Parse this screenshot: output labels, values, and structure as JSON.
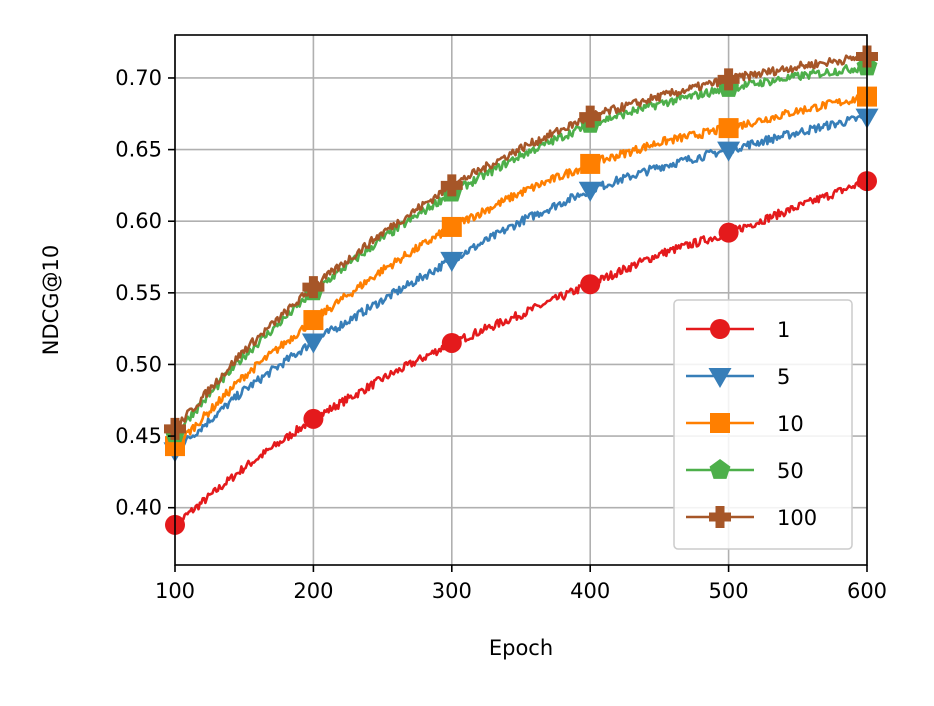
{
  "chart_data": {
    "type": "line",
    "title": "",
    "xlabel": "Epoch",
    "ylabel": "NDCG@10",
    "xlim": [
      100,
      600
    ],
    "ylim": [
      0.36,
      0.73
    ],
    "xticks": [
      100,
      200,
      300,
      400,
      500,
      600
    ],
    "xtick_labels": [
      "100",
      "200",
      "300",
      "400",
      "500",
      "600"
    ],
    "yticks": [
      0.4,
      0.45,
      0.5,
      0.55,
      0.6,
      0.65,
      0.7
    ],
    "ytick_labels": [
      "0.40",
      "0.45",
      "0.50",
      "0.55",
      "0.60",
      "0.65",
      "0.70"
    ],
    "grid": true,
    "legend_position": "lower-right",
    "marker_x": [
      100,
      200,
      300,
      400,
      500,
      600
    ],
    "series": [
      {
        "name": "1",
        "color": "#e41a1c",
        "marker": "circle",
        "x": [
          100,
          150,
          200,
          250,
          300,
          350,
          400,
          450,
          500,
          550,
          600
        ],
        "y": [
          0.388,
          0.428,
          0.462,
          0.49,
          0.515,
          0.535,
          0.556,
          0.577,
          0.592,
          0.61,
          0.628
        ]
      },
      {
        "name": "5",
        "color": "#377eb8",
        "marker": "triangle-down",
        "x": [
          100,
          150,
          200,
          250,
          300,
          350,
          400,
          450,
          500,
          550,
          600
        ],
        "y": [
          0.44,
          0.482,
          0.516,
          0.545,
          0.573,
          0.6,
          0.622,
          0.638,
          0.65,
          0.662,
          0.673
        ]
      },
      {
        "name": "10",
        "color": "#ff7f00",
        "marker": "square",
        "x": [
          100,
          150,
          200,
          250,
          300,
          350,
          400,
          450,
          500,
          550,
          600
        ],
        "y": [
          0.443,
          0.492,
          0.531,
          0.566,
          0.596,
          0.62,
          0.64,
          0.655,
          0.665,
          0.677,
          0.687
        ]
      },
      {
        "name": "50",
        "color": "#4daf4a",
        "marker": "pentagon",
        "x": [
          100,
          150,
          200,
          250,
          300,
          350,
          400,
          450,
          500,
          550,
          600
        ],
        "y": [
          0.452,
          0.506,
          0.551,
          0.588,
          0.62,
          0.646,
          0.668,
          0.682,
          0.693,
          0.701,
          0.708
        ]
      },
      {
        "name": "100",
        "color": "#a65628",
        "marker": "plus",
        "x": [
          100,
          150,
          200,
          250,
          300,
          350,
          400,
          450,
          500,
          550,
          600
        ],
        "y": [
          0.455,
          0.51,
          0.554,
          0.592,
          0.625,
          0.651,
          0.673,
          0.687,
          0.699,
          0.708,
          0.715
        ]
      }
    ]
  }
}
